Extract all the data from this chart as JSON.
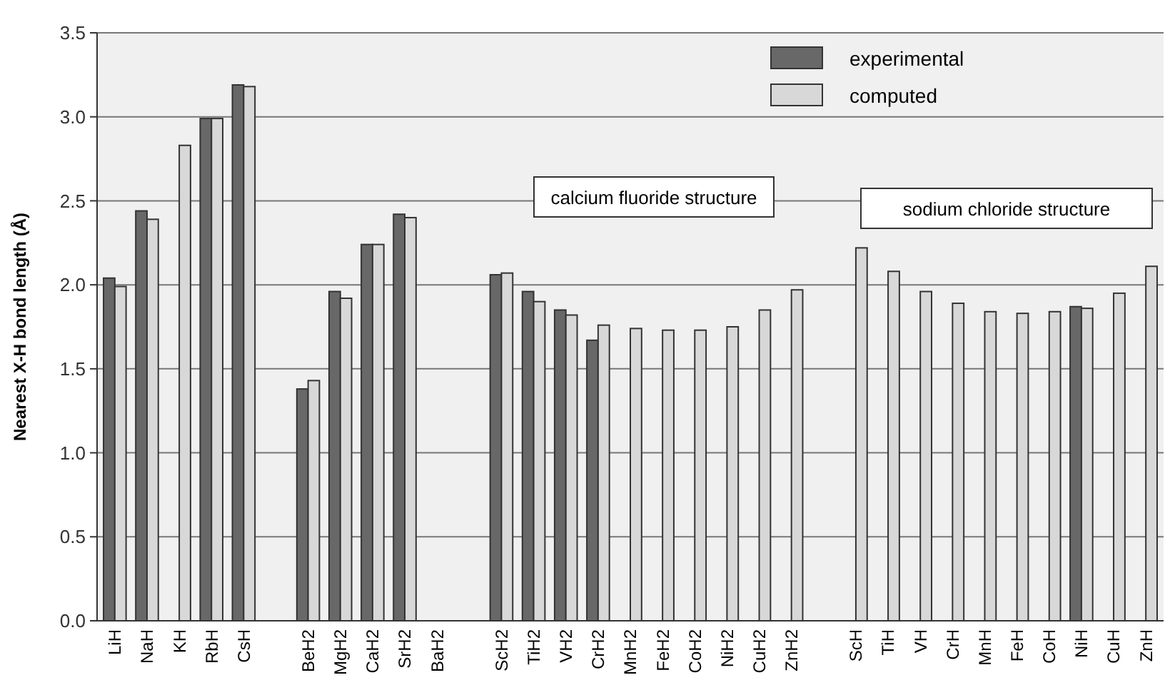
{
  "chart_data": {
    "type": "bar",
    "ylabel": "Nearest X-H bond length (Å)",
    "categories": [
      "LiH",
      "NaH",
      "KH",
      "RbH",
      "CsH",
      null,
      "BeH2",
      "MgH2",
      "CaH2",
      "SrH2",
      "BaH2",
      null,
      "ScH2",
      "TiH2",
      "VH2",
      "CrH2",
      "MnH2",
      "FeH2",
      "CoH2",
      "NiH2",
      "CuH2",
      "ZnH2",
      null,
      "ScH",
      "TiH",
      "VH",
      "CrH",
      "MnH",
      "FeH",
      "CoH",
      "NiH",
      "CuH",
      "ZnH"
    ],
    "series": [
      {
        "name": "experimental",
        "color": "#686868",
        "values": [
          2.04,
          2.44,
          null,
          2.99,
          3.19,
          null,
          1.38,
          1.96,
          2.24,
          2.42,
          null,
          null,
          2.06,
          1.96,
          1.85,
          1.67,
          null,
          null,
          null,
          null,
          null,
          null,
          null,
          null,
          null,
          null,
          null,
          null,
          null,
          null,
          1.87,
          null,
          null
        ]
      },
      {
        "name": "computed",
        "color": "#d8d8d8",
        "values": [
          1.99,
          2.39,
          2.83,
          2.99,
          3.18,
          null,
          1.43,
          1.92,
          2.24,
          2.4,
          null,
          null,
          2.07,
          1.9,
          1.82,
          1.76,
          1.74,
          1.73,
          1.73,
          1.75,
          1.85,
          1.97,
          null,
          2.22,
          2.08,
          1.96,
          1.89,
          1.84,
          1.83,
          1.84,
          1.86,
          1.95,
          2.11
        ]
      }
    ],
    "ylim": [
      0,
      3.5
    ],
    "yticks": [
      {
        "value": 0,
        "label": "0.0"
      },
      {
        "value": 0.5,
        "label": "0.5"
      },
      {
        "value": 1,
        "label": "1.0"
      },
      {
        "value": 1.5,
        "label": "1.5"
      },
      {
        "value": 2,
        "label": "2.0"
      },
      {
        "value": 2.5,
        "label": "2.5"
      },
      {
        "value": 3,
        "label": "3.0"
      },
      {
        "value": 3.5,
        "label": "3.5"
      }
    ],
    "grid": "y",
    "legend": "top right",
    "annotations": [
      "calcium fluoride structure",
      "sodium chloride structure"
    ]
  }
}
